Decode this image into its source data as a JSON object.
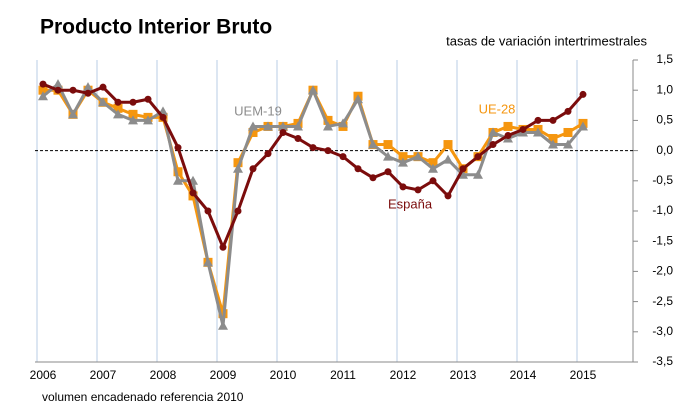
{
  "chart_data": {
    "type": "line",
    "title": "Producto Interior Bruto",
    "subtitle": "tasas de variación intertrimestrales",
    "footnote": "volumen encadenado referencia 2010",
    "categories": [
      "2006",
      null,
      null,
      null,
      "2007",
      null,
      null,
      null,
      "2008",
      null,
      null,
      null,
      "2009",
      null,
      null,
      null,
      "2010",
      null,
      null,
      null,
      "2011",
      null,
      null,
      null,
      "2012",
      null,
      null,
      null,
      "2013",
      null,
      null,
      null,
      "2014",
      null,
      null,
      null,
      "2015"
    ],
    "series": [
      {
        "name": "España",
        "color": "#7b0c0c",
        "values": [
          1.1,
          1.0,
          1.0,
          0.95,
          1.05,
          0.8,
          0.8,
          0.85,
          0.55,
          0.05,
          -0.7,
          -1.0,
          -1.6,
          -1.0,
          -0.3,
          -0.05,
          0.3,
          0.2,
          0.05,
          0.0,
          -0.1,
          -0.3,
          -0.45,
          -0.35,
          -0.6,
          -0.65,
          -0.5,
          -0.75,
          -0.3,
          -0.1,
          0.1,
          0.25,
          0.35,
          0.5,
          0.5,
          0.65,
          0.93
        ]
      },
      {
        "name": "UE-28",
        "color": "#f5960f",
        "values": [
          1.0,
          1.0,
          0.6,
          1.0,
          0.8,
          0.7,
          0.6,
          0.55,
          0.55,
          -0.35,
          -0.75,
          -1.85,
          -2.7,
          -0.2,
          0.3,
          0.4,
          0.4,
          0.45,
          1.0,
          0.5,
          0.4,
          0.9,
          0.1,
          0.1,
          -0.1,
          -0.1,
          -0.2,
          0.1,
          -0.3,
          -0.1,
          0.3,
          0.4,
          0.35,
          0.35,
          0.2,
          0.3,
          0.45
        ]
      },
      {
        "name": "UEM-19",
        "color": "#8c8c8c",
        "values": [
          0.9,
          1.1,
          0.6,
          1.05,
          0.8,
          0.6,
          0.5,
          0.5,
          0.65,
          -0.5,
          -0.5,
          -1.85,
          -2.9,
          -0.3,
          0.4,
          0.4,
          0.4,
          0.4,
          1.0,
          0.4,
          0.45,
          0.85,
          0.1,
          -0.1,
          -0.2,
          -0.1,
          -0.3,
          -0.15,
          -0.4,
          -0.4,
          0.3,
          0.2,
          0.3,
          0.3,
          0.1,
          0.1,
          0.4
        ]
      }
    ],
    "ylim": [
      -3.5,
      1.5
    ],
    "yticks": [
      {
        "value": 1.5,
        "label": "1,5"
      },
      {
        "value": 1.0,
        "label": "1,0"
      },
      {
        "value": 0.5,
        "label": "0,5"
      },
      {
        "value": 0.0,
        "label": "0,0"
      },
      {
        "value": -0.5,
        "label": "-0,5"
      },
      {
        "value": -1.0,
        "label": "-1,0"
      },
      {
        "value": -1.5,
        "label": "-1,5"
      },
      {
        "value": -2.0,
        "label": "-2,0"
      },
      {
        "value": -2.5,
        "label": "-2,5"
      },
      {
        "value": -3.0,
        "label": "-3,0"
      },
      {
        "value": -3.5,
        "label": "-3,5"
      }
    ],
    "y_axis_side": "right"
  }
}
